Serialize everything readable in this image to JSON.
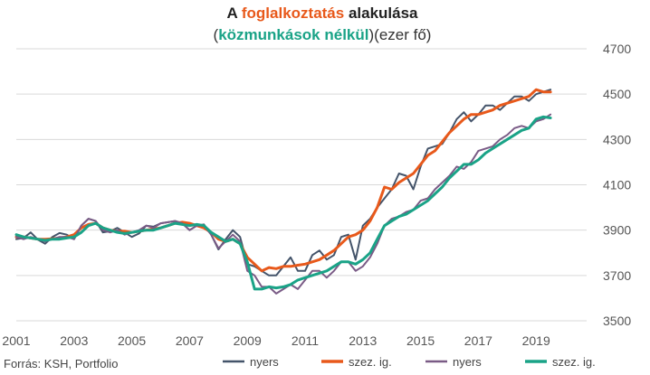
{
  "title": {
    "line1": {
      "pre": "A ",
      "highlight": "foglalkoztatás",
      "post": " alakulása"
    },
    "line2": {
      "open": "(",
      "highlight": "közmunkások nélkül",
      "close": ")",
      "rest": "(ezer fő)"
    }
  },
  "source": "Forrás: KSH, Portfolio",
  "colors": {
    "nyers_all": "#44546a",
    "szez_all": "#e8591b",
    "nyers_ex": "#7a5b86",
    "szez_ex": "#1aa387",
    "grid": "#d9d9d9",
    "title_orange": "#e8591b",
    "title_green": "#1aa387"
  },
  "chart_data": {
    "type": "line",
    "x_start": 2001,
    "x_step": 0.25,
    "x_ticks": [
      "2001",
      "2003",
      "2005",
      "2007",
      "2009",
      "2011",
      "2013",
      "2015",
      "2017",
      "2019"
    ],
    "y_ticks": [
      "3500",
      "3700",
      "3900",
      "4100",
      "4300",
      "4500",
      "4700"
    ],
    "ylim": [
      3500,
      4700
    ],
    "xlim": [
      2001,
      2020.75
    ],
    "grid": "horizontal",
    "legend_placement": "bottom",
    "series": [
      {
        "name": "nyers",
        "color": "#44546a",
        "values": [
          3860,
          3865,
          3890,
          3858,
          3840,
          3870,
          3887,
          3880,
          3860,
          3920,
          3950,
          3940,
          3890,
          3895,
          3910,
          3890,
          3870,
          3885,
          3920,
          3915,
          3930,
          3935,
          3940,
          3930,
          3900,
          3920,
          3925,
          3880,
          3815,
          3860,
          3900,
          3870,
          3750,
          3740,
          3720,
          3700,
          3700,
          3740,
          3780,
          3720,
          3720,
          3790,
          3810,
          3770,
          3790,
          3870,
          3880,
          3770,
          3920,
          3950,
          4000,
          4040,
          4080,
          4150,
          4140,
          4080,
          4180,
          4260,
          4270,
          4280,
          4330,
          4390,
          4420,
          4380,
          4410,
          4450,
          4450,
          4430,
          4460,
          4490,
          4490,
          4470,
          4500,
          4510,
          4520
        ]
      },
      {
        "name": "szez. ig.",
        "color": "#e8591b",
        "values": [
          3870,
          3870,
          3865,
          3860,
          3860,
          3862,
          3865,
          3870,
          3880,
          3910,
          3925,
          3930,
          3910,
          3900,
          3895,
          3895,
          3890,
          3895,
          3900,
          3905,
          3910,
          3920,
          3930,
          3935,
          3930,
          3920,
          3910,
          3890,
          3860,
          3850,
          3860,
          3840,
          3780,
          3750,
          3720,
          3735,
          3730,
          3740,
          3740,
          3745,
          3750,
          3760,
          3770,
          3790,
          3810,
          3840,
          3870,
          3880,
          3900,
          3940,
          4000,
          4090,
          4080,
          4110,
          4130,
          4150,
          4190,
          4230,
          4250,
          4290,
          4330,
          4360,
          4390,
          4410,
          4410,
          4420,
          4430,
          4450,
          4460,
          4470,
          4480,
          4490,
          4520,
          4510,
          4510
        ]
      },
      {
        "name": "nyers",
        "color": "#7a5b86",
        "values": [
          3870,
          3860,
          3870,
          3860,
          3850,
          3860,
          3870,
          3870,
          3860,
          3920,
          3950,
          3940,
          3900,
          3890,
          3900,
          3880,
          3890,
          3900,
          3920,
          3910,
          3930,
          3935,
          3940,
          3930,
          3900,
          3920,
          3920,
          3880,
          3820,
          3850,
          3880,
          3850,
          3720,
          3700,
          3650,
          3650,
          3620,
          3640,
          3660,
          3640,
          3680,
          3720,
          3720,
          3690,
          3720,
          3760,
          3760,
          3720,
          3740,
          3780,
          3840,
          3920,
          3950,
          3960,
          3980,
          3990,
          4030,
          4040,
          4080,
          4110,
          4140,
          4180,
          4170,
          4200,
          4250,
          4260,
          4270,
          4300,
          4320,
          4350,
          4360,
          4350,
          4380,
          4390,
          4410
        ]
      },
      {
        "name": "szez. ig.",
        "color": "#1aa387",
        "values": [
          3880,
          3870,
          3865,
          3860,
          3855,
          3860,
          3860,
          3865,
          3870,
          3890,
          3920,
          3930,
          3910,
          3900,
          3890,
          3885,
          3890,
          3895,
          3900,
          3900,
          3910,
          3920,
          3930,
          3925,
          3920,
          3925,
          3920,
          3890,
          3870,
          3850,
          3860,
          3840,
          3760,
          3640,
          3640,
          3650,
          3645,
          3650,
          3660,
          3680,
          3690,
          3700,
          3710,
          3720,
          3740,
          3760,
          3760,
          3750,
          3770,
          3800,
          3860,
          3920,
          3940,
          3960,
          3970,
          3990,
          4010,
          4030,
          4060,
          4090,
          4130,
          4160,
          4190,
          4190,
          4210,
          4240,
          4260,
          4280,
          4300,
          4320,
          4340,
          4350,
          4390,
          4400,
          4395
        ]
      }
    ]
  }
}
